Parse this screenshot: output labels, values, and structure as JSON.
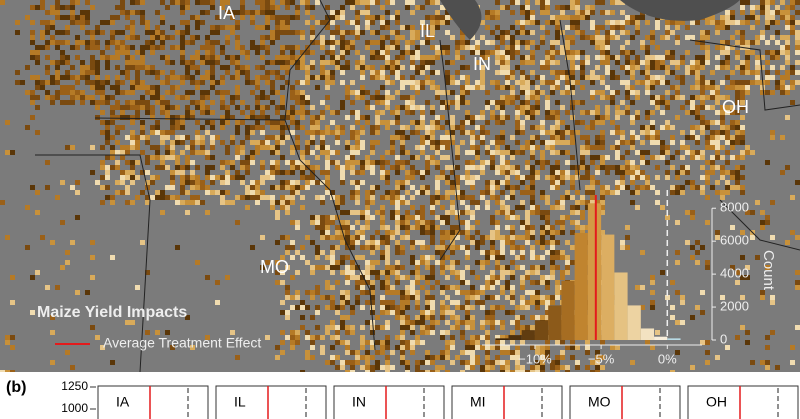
{
  "map": {
    "state_labels": [
      "IA",
      "IL",
      "IN",
      "OH",
      "MO"
    ],
    "legend_title": "Maize Yield Impacts",
    "legend_entry": "Average Treatment Effect"
  },
  "chart_data": {
    "type": "histogram",
    "bins": [
      -13,
      -12,
      -11,
      -10,
      -9,
      -8,
      -7,
      -6,
      -5,
      -4,
      -3,
      -2,
      -1,
      0,
      1
    ],
    "values": [
      100,
      300,
      600,
      1200,
      2100,
      3600,
      6500,
      8300,
      6400,
      4100,
      2100,
      700,
      200,
      100
    ],
    "colors": [
      "#3d2508",
      "#4e300c",
      "#603c10",
      "#754a14",
      "#8c5a1a",
      "#a66d22",
      "#c0842f",
      "#d29a45",
      "#dcae62",
      "#e5c282",
      "#edd3a2",
      "#f3e2c1",
      "#f7eedc",
      "#b9dbe6"
    ],
    "xlim": [
      -14,
      3
    ],
    "xticks": [
      {
        "value": -10,
        "label": "−10%"
      },
      {
        "value": -5,
        "label": "−5%"
      },
      {
        "value": 0,
        "label": "0%"
      }
    ],
    "ylim": [
      0,
      8500
    ],
    "yticks": [
      0,
      2000,
      4000,
      6000,
      8000
    ],
    "ylabel": "Count",
    "ate": -5.4,
    "reference": 0,
    "ate_color": "#e41a1c"
  },
  "panel_b": {
    "label": "(b)",
    "ylim": [
      1000,
      1250
    ],
    "yticks": [
      1250,
      1000
    ],
    "panels": [
      "IA",
      "IL",
      "IN",
      "MI",
      "MO",
      "OH"
    ]
  }
}
